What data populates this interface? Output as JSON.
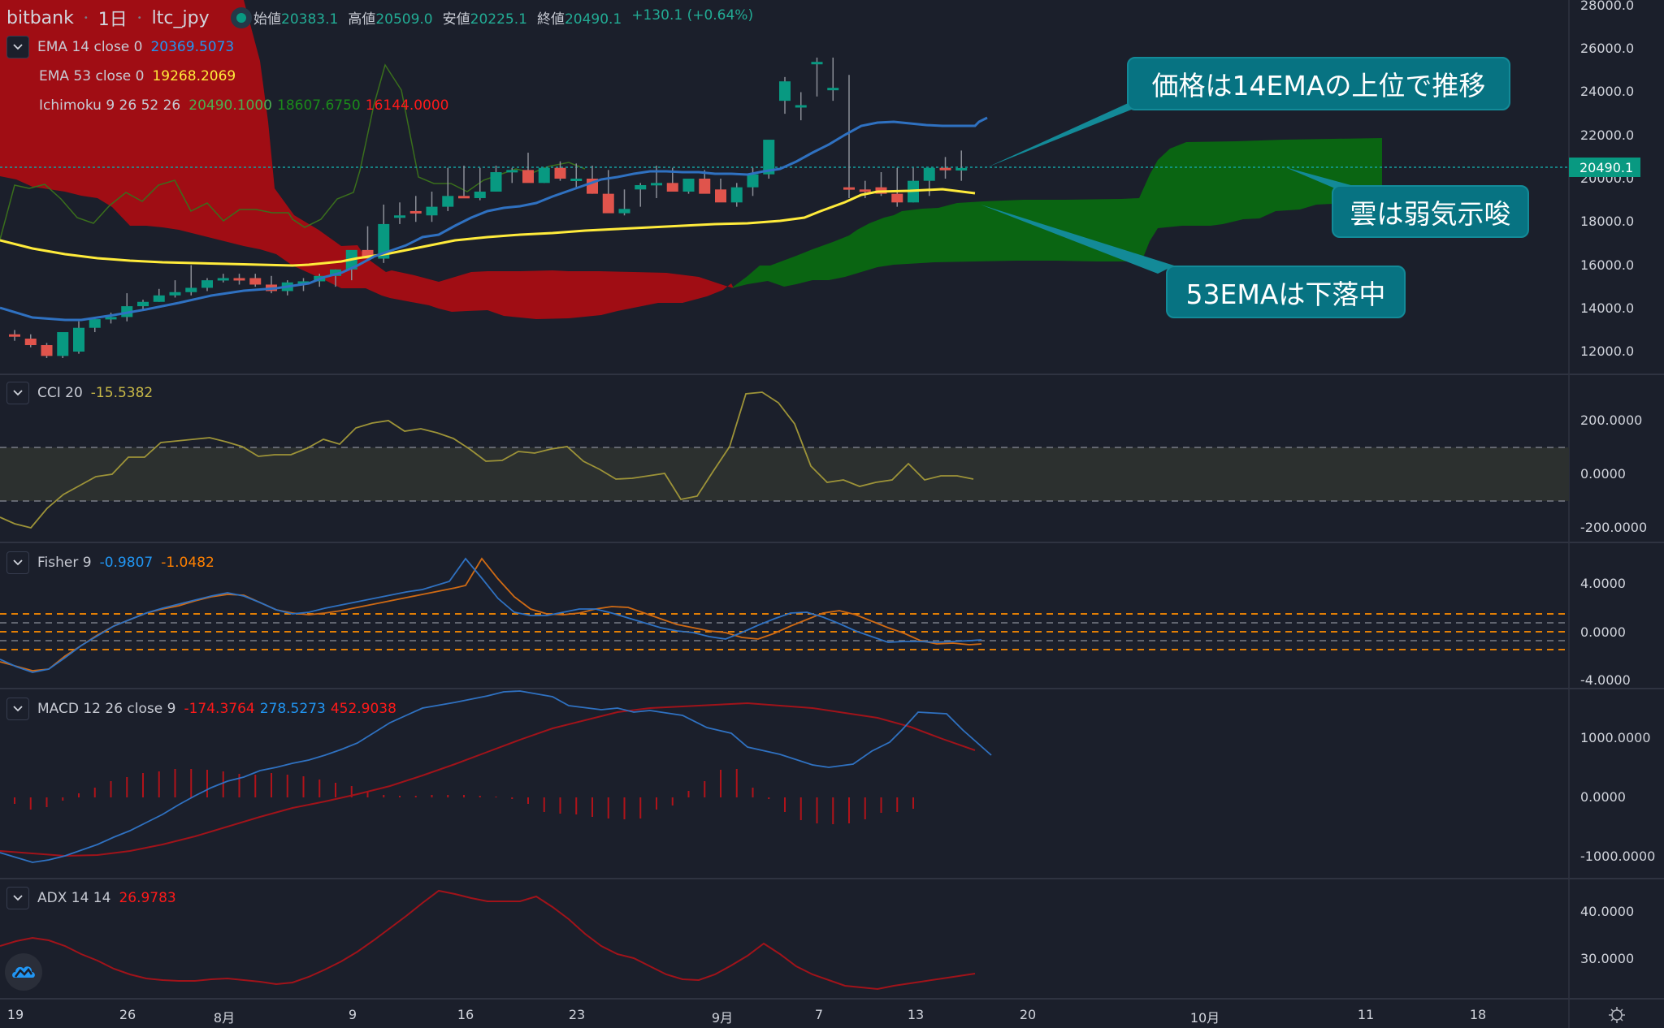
{
  "header": {
    "exchange": "bitbank",
    "interval": "1日",
    "symbol": "ltc_jpy",
    "ohlc": [
      {
        "key": "始値",
        "value": "20383.1"
      },
      {
        "key": "高値",
        "value": "20509.0"
      },
      {
        "key": "安値",
        "value": "20225.1"
      },
      {
        "key": "終値",
        "value": "20490.1"
      }
    ],
    "change": "+130.1 (+0.64%)"
  },
  "legends": {
    "ema14": {
      "label": "EMA 14 close 0",
      "value": "20369.5073",
      "color": "#2196f3"
    },
    "ema53": {
      "label": "EMA 53 close 0",
      "value": "19268.2069",
      "color": "#ffeb3b"
    },
    "ichimoku": {
      "label": "Ichimoku 9 26 52 26",
      "values": [
        "20490.1000",
        "18607.6750",
        "16144.0000"
      ],
      "colors": [
        "#4caf50",
        "#1b8a1b",
        "#ff0000"
      ]
    },
    "cci": {
      "label": "CCI 20",
      "value": "-15.5382",
      "color": "#c9b947"
    },
    "fisher": {
      "label": "Fisher 9",
      "values": [
        "-0.9807",
        "-1.0482"
      ],
      "colors": [
        "#2196f3",
        "#ff8000"
      ]
    },
    "macd": {
      "label": "MACD 12 26 close 9",
      "values": [
        "-174.3764",
        "278.5273",
        "452.9038"
      ],
      "colors": [
        "#ff0000",
        "#2196f3",
        "#ff0000"
      ]
    },
    "adx": {
      "label": "ADX 14 14",
      "value": "26.9783",
      "color": "#ff0000"
    }
  },
  "price_axis": {
    "main": [
      "28000.0",
      "26000.0",
      "24000.0",
      "22000.0",
      "20000.0",
      "18000.0",
      "16000.0",
      "14000.0",
      "12000.0"
    ],
    "cci": [
      "200.0000",
      "0.0000",
      "-200.0000"
    ],
    "fisher": [
      "4.0000",
      "0.0000",
      "-4.0000"
    ],
    "macd": [
      "1000.0000",
      "0.0000",
      "-1000.0000"
    ],
    "adx": [
      "40.0000",
      "30.0000"
    ],
    "last_price": "20490.1"
  },
  "time_axis": [
    "19",
    "26",
    "8月",
    "9",
    "16",
    "23",
    "9月",
    "7",
    "13",
    "20",
    "10月",
    "11",
    "18"
  ],
  "callouts": [
    {
      "text": "価格は14EMAの上位で推移"
    },
    {
      "text": "雲は弱気示唆"
    },
    {
      "text": "53EMAは下落中"
    }
  ],
  "colors": {
    "background": "#1b1f2b",
    "up": "#089981",
    "down": "#e0544c",
    "cloud_bear": "#a00d14",
    "cloud_bull": "#0a6512",
    "callout": "#077382"
  },
  "chart_data": [
    {
      "type": "candlestick",
      "title": "bitbank 1日 ltc_jpy",
      "x": [
        "7/19",
        "7/20",
        "7/21",
        "7/22",
        "7/23",
        "7/24",
        "7/25",
        "7/26",
        "7/27",
        "7/28",
        "7/29",
        "7/30",
        "7/31",
        "8/1",
        "8/2",
        "8/3",
        "8/4",
        "8/5",
        "8/6",
        "8/7",
        "8/8",
        "8/9",
        "8/10",
        "8/11",
        "8/12",
        "8/13",
        "8/14",
        "8/15",
        "8/16",
        "8/17",
        "8/18",
        "8/19",
        "8/20",
        "8/21",
        "8/22",
        "8/23",
        "8/24",
        "8/25",
        "8/26",
        "8/27",
        "8/28",
        "8/29",
        "8/30",
        "8/31",
        "9/1",
        "9/2",
        "9/3",
        "9/4",
        "9/5",
        "9/6",
        "9/7",
        "9/8",
        "9/9",
        "9/10",
        "9/11",
        "9/12",
        "9/13",
        "9/14",
        "9/15",
        "9/16"
      ],
      "open": [
        12800,
        12600,
        12300,
        11800,
        12000,
        13100,
        13500,
        13600,
        14100,
        14300,
        14600,
        14750,
        14950,
        15300,
        15400,
        15400,
        15100,
        14800,
        15200,
        15250,
        15500,
        15800,
        16700,
        16300,
        18300,
        18500,
        18300,
        18700,
        19200,
        19100,
        19400,
        20300,
        20400,
        19800,
        20500,
        20000,
        20000,
        19300,
        18400,
        19500,
        19700,
        19800,
        19400,
        20000,
        19500,
        18900,
        19600,
        20200,
        23600,
        23400,
        25400,
        24200,
        19600,
        19500,
        19600,
        19300,
        18900,
        19900,
        20500,
        20400
      ],
      "high": [
        13000,
        12800,
        12400,
        12200,
        13400,
        13500,
        13800,
        14700,
        14400,
        14900,
        15300,
        16000,
        15400,
        15600,
        15600,
        15600,
        15500,
        15300,
        15400,
        15600,
        15800,
        16400,
        17800,
        18800,
        18900,
        19200,
        19400,
        20500,
        20600,
        20500,
        20600,
        20500,
        21200,
        20500,
        20800,
        20700,
        20600,
        20400,
        19500,
        19800,
        20600,
        20500,
        20000,
        20400,
        20000,
        19800,
        20500,
        21400,
        24700,
        24000,
        25600,
        25600,
        24800,
        19900,
        20300,
        20500,
        20500,
        20300,
        21000,
        21300
      ],
      "low": [
        12500,
        12200,
        11700,
        11700,
        11900,
        12900,
        13300,
        13400,
        13900,
        14300,
        14500,
        14600,
        14800,
        15200,
        15100,
        15000,
        14700,
        14600,
        14800,
        15000,
        15000,
        15300,
        16400,
        16100,
        17900,
        18000,
        18000,
        18500,
        19200,
        19000,
        19400,
        19800,
        20000,
        19800,
        19900,
        19600,
        19300,
        18800,
        18300,
        18700,
        19100,
        19600,
        19300,
        19600,
        19000,
        18700,
        19200,
        20000,
        23000,
        22700,
        23800,
        23600,
        19100,
        19100,
        19200,
        18700,
        18900,
        19200,
        20000,
        19900
      ],
      "close": [
        12700,
        12300,
        11800,
        12900,
        13100,
        13500,
        13600,
        14100,
        14300,
        14600,
        14750,
        14950,
        15300,
        15400,
        15300,
        15100,
        14800,
        15200,
        15250,
        15500,
        15800,
        16700,
        16300,
        17900,
        18300,
        18400,
        18700,
        19200,
        19100,
        19400,
        20300,
        20400,
        19800,
        20500,
        20000,
        20000,
        19300,
        18400,
        18600,
        19700,
        19800,
        19400,
        20000,
        19300,
        18900,
        19600,
        20200,
        21800,
        24500,
        23400,
        25400,
        24200,
        19500,
        19400,
        19300,
        18900,
        19900,
        20500,
        20400,
        20490
      ],
      "ylim": [
        11500,
        28000
      ],
      "overlays": [
        {
          "name": "EMA 14",
          "color": "#2f71c1"
        },
        {
          "name": "EMA 53",
          "color": "#ffeb3b"
        },
        {
          "name": "Ichimoku cloud",
          "colors": [
            "#a00d14",
            "#0a6512"
          ]
        }
      ]
    },
    {
      "type": "line",
      "title": "CCI 20",
      "ylim": [
        -250,
        300
      ],
      "bands": [
        100,
        -100
      ],
      "last": -15.5382
    },
    {
      "type": "line",
      "title": "Fisher 9",
      "ylim": [
        -5,
        6
      ],
      "series": [
        {
          "name": "Fisher",
          "last": -0.9807
        },
        {
          "name": "Trigger",
          "last": -1.0482
        }
      ]
    },
    {
      "type": "bar+line",
      "title": "MACD 12 26 close 9",
      "ylim": [
        -1200,
        1200
      ],
      "series": [
        {
          "name": "Histogram",
          "last": -174.3764
        },
        {
          "name": "MACD",
          "last": 278.5273
        },
        {
          "name": "Signal",
          "last": 452.9038
        }
      ]
    },
    {
      "type": "line",
      "title": "ADX 14 14",
      "ylim": [
        24,
        45
      ],
      "last": 26.9783
    }
  ]
}
